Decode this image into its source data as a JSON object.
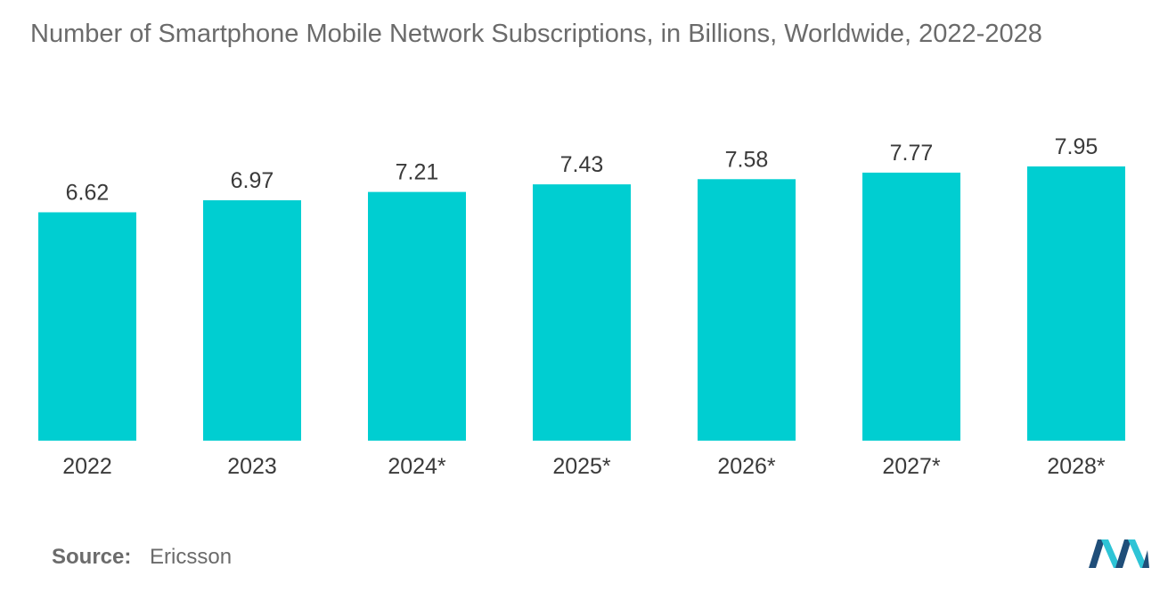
{
  "chart_data": {
    "type": "bar",
    "title": "Number of Smartphone Mobile Network Subscriptions, in Billions, Worldwide, 2022-2028",
    "categories": [
      "2022",
      "2023",
      "2024*",
      "2025*",
      "2026*",
      "2027*",
      "2028*"
    ],
    "values": [
      6.62,
      6.97,
      7.21,
      7.43,
      7.58,
      7.77,
      7.95
    ],
    "value_labels": [
      "6.62",
      "6.97",
      "7.21",
      "7.43",
      "7.58",
      "7.77",
      "7.95"
    ],
    "xlabel": "",
    "ylabel": "",
    "ylim": [
      0,
      8
    ],
    "grid": false,
    "color": "#00ced1"
  },
  "source": {
    "label": "Source:",
    "value": "Ericsson"
  },
  "logo": {
    "icon": "mordor-intelligence-logo-icon",
    "colors": [
      "#1f4e79",
      "#2ec4d6"
    ]
  }
}
